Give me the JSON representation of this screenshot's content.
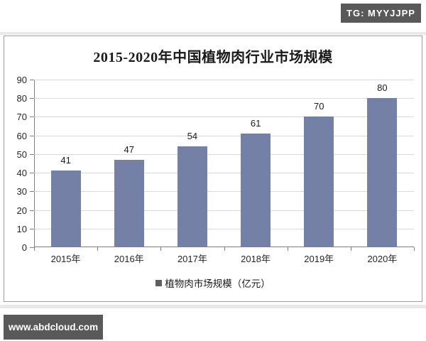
{
  "page": {
    "badge": "TG: MYYJJPP",
    "website": "www.abdcloud.com"
  },
  "colors": {
    "bar": "#7480A5",
    "badge_background": "#595959",
    "legend_marker": "#5f5f5f",
    "gridline": "#d9d9d9",
    "axis": "#808080"
  },
  "chart_data": {
    "type": "bar",
    "title": "2015-2020年中国植物肉行业市场规模",
    "categories": [
      "2015年",
      "2016年",
      "2017年",
      "2018年",
      "2019年",
      "2020年"
    ],
    "values": [
      41,
      47,
      54,
      61,
      70,
      80
    ],
    "series_name": "植物肉市场规模（亿元）",
    "legend": "植物肉市场规模（亿元）",
    "legend_position": "bottom",
    "xlabel": "",
    "ylabel": "",
    "ylim": [
      0,
      90
    ],
    "ytick_step": 10,
    "grid": true,
    "data_labels": true
  }
}
